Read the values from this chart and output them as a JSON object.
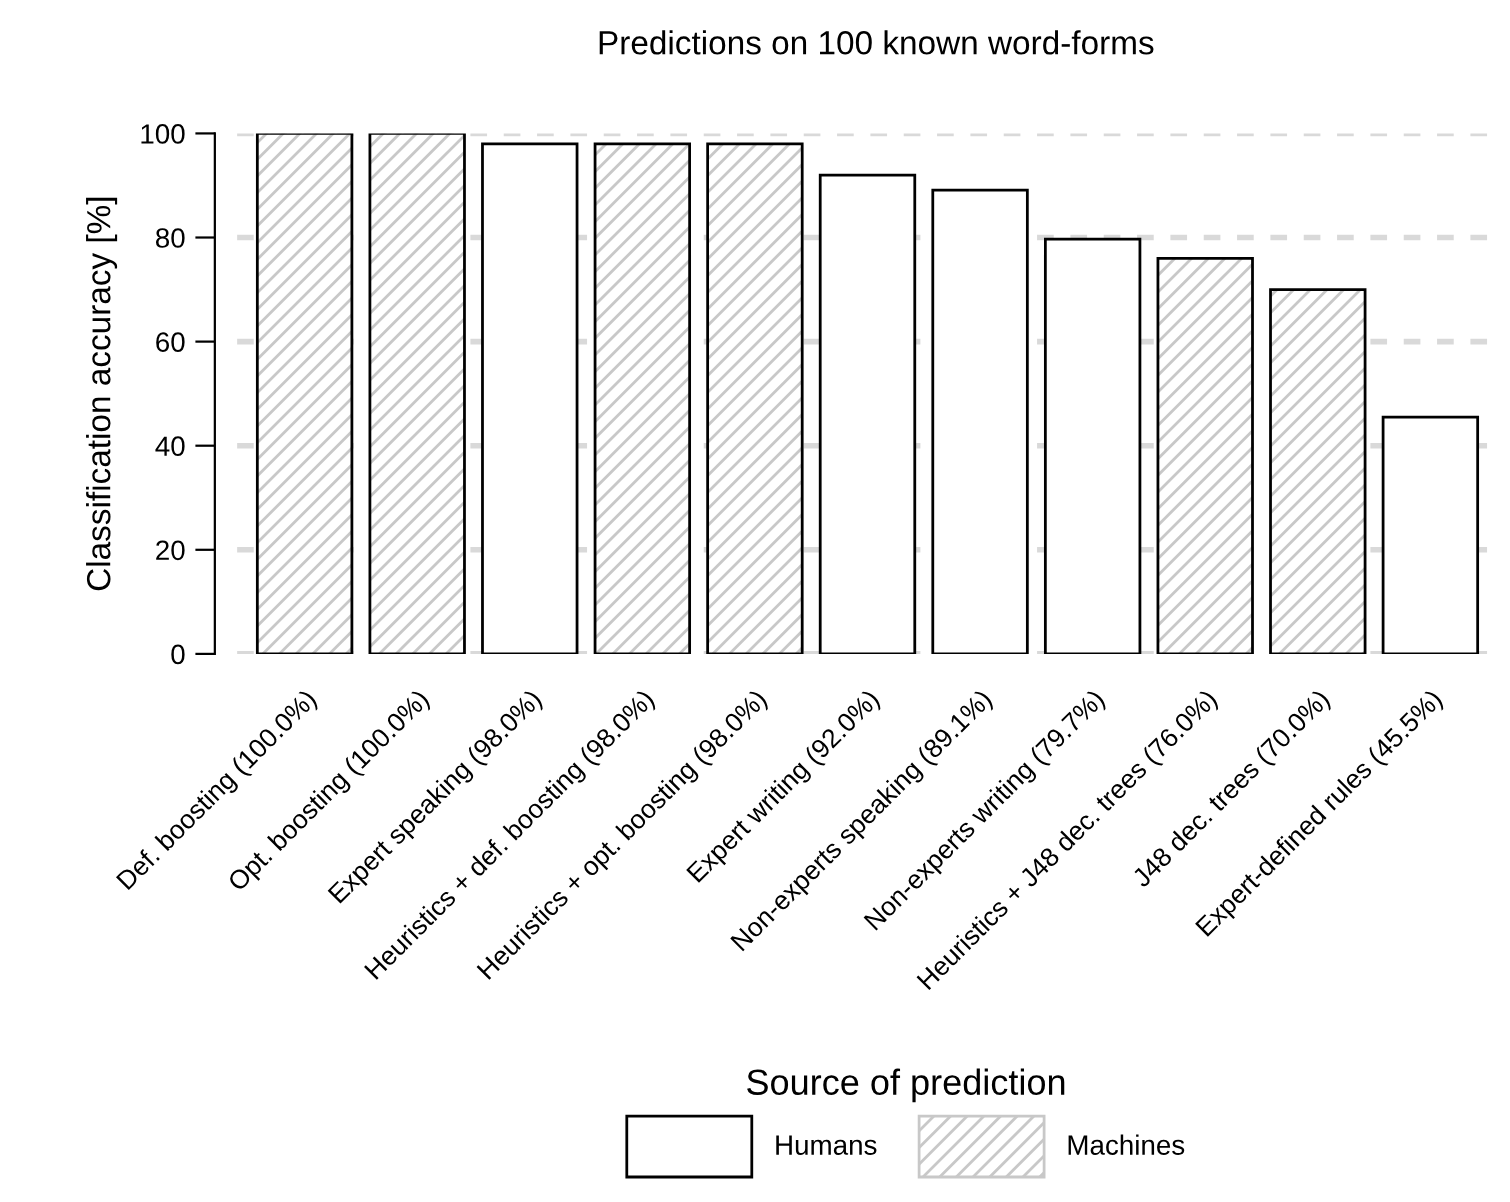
{
  "chart_data": {
    "type": "bar",
    "title": "Predictions on 100 known word-forms",
    "ylabel": "Classification accuracy [%]",
    "legend_title": "Source of prediction",
    "categories": [
      "Def. boosting (100.0%)",
      "Opt. boosting (100.0%)",
      "Expert speaking (98.0%)",
      "Heuristics + def. boosting (98.0%)",
      "Heuristics + opt. boosting (98.0%)",
      "Expert writing (92.0%)",
      "Non-experts speaking (89.1%)",
      "Non-experts writing (79.7%)",
      "Heuristics + J48 dec. trees (76.0%)",
      "J48 dec. trees (70.0%)",
      "Expert-defined rules (45.5%)"
    ],
    "series": [
      {
        "name": "Humans",
        "color": "#ffffff",
        "values": [
          null,
          null,
          98.0,
          null,
          null,
          92.0,
          89.1,
          79.7,
          null,
          null,
          45.5
        ]
      },
      {
        "name": "Machines",
        "color": "#c8c8c8",
        "values": [
          100.0,
          100.0,
          null,
          98.0,
          98.0,
          null,
          null,
          null,
          76.0,
          70.0,
          null
        ]
      }
    ],
    "ylim": [
      0,
      100
    ],
    "yticks": [
      0,
      20,
      40,
      60,
      80,
      100
    ],
    "grid": "y",
    "legend": "bottom"
  }
}
